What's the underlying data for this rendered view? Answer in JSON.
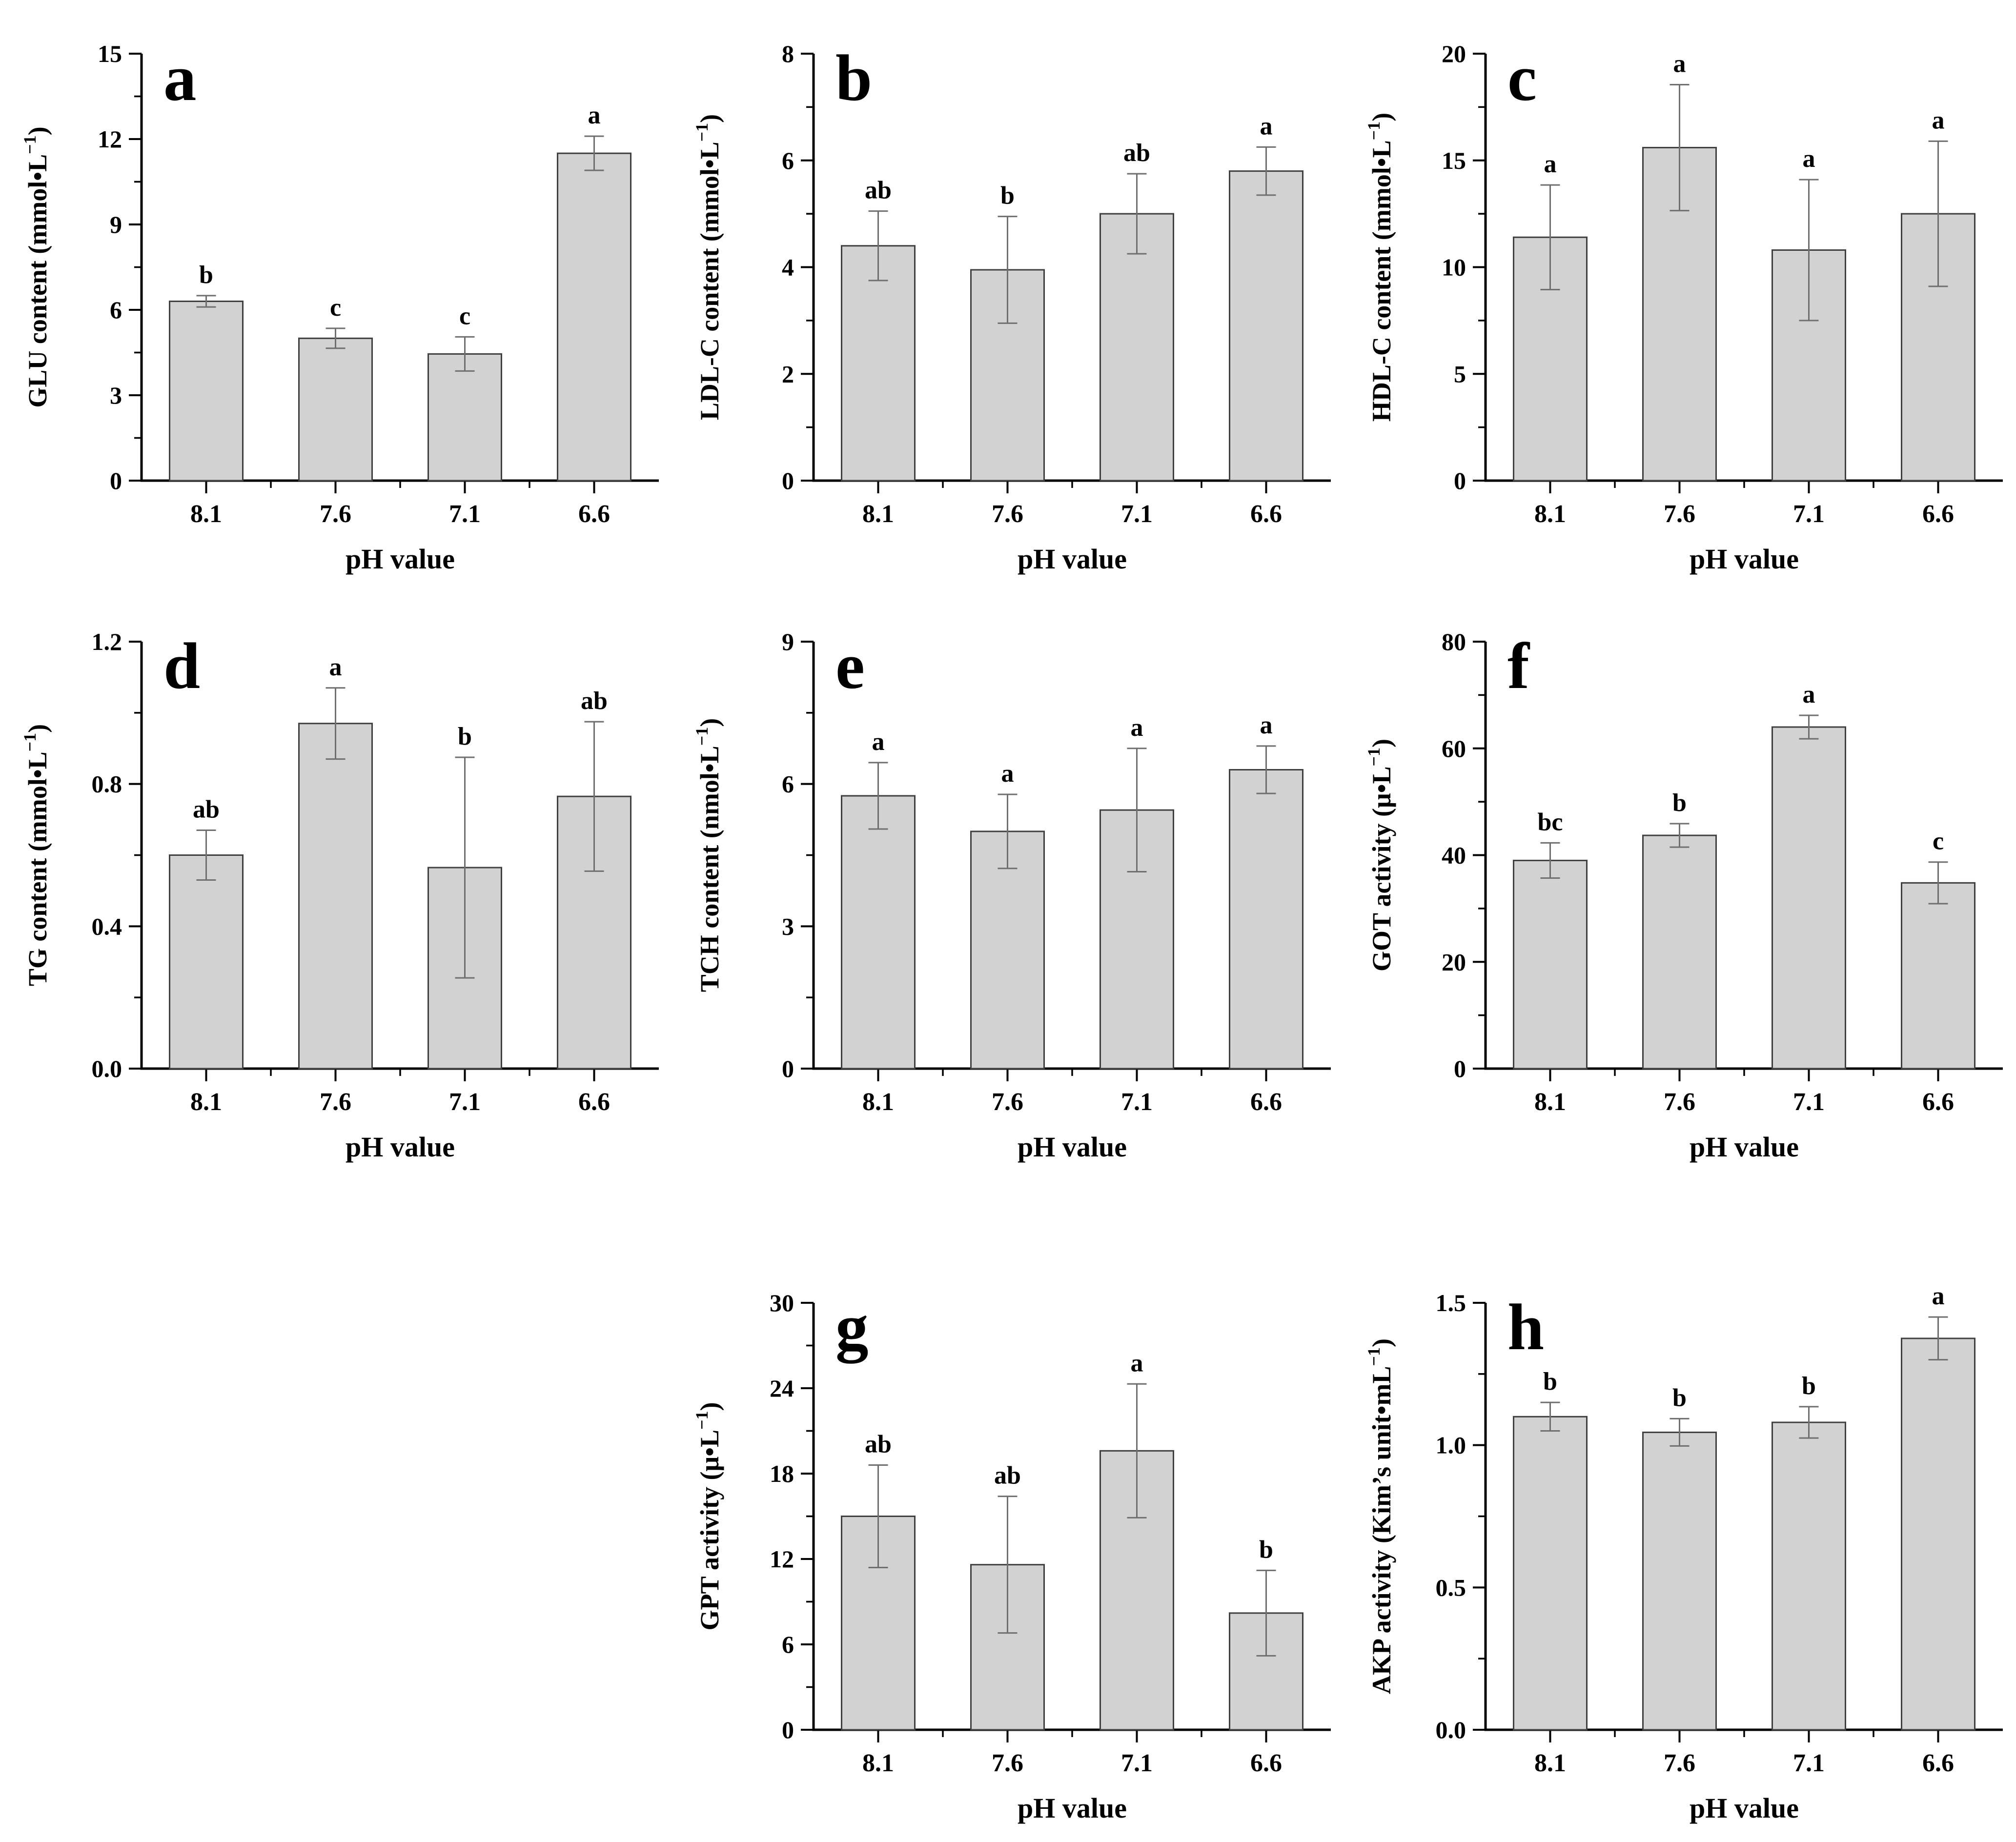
{
  "figure": {
    "background": "#ffffff",
    "description_panels": [
      "a",
      "b",
      "c",
      "d",
      "e",
      "f",
      "g",
      "h"
    ]
  },
  "shared": {
    "xlabel": "pH value",
    "categories": [
      "8.1",
      "7.6",
      "7.1",
      "6.6"
    ],
    "bar_fill": "#d2d2d2",
    "bar_stroke": "#404040",
    "error_color": "#6f6f6f",
    "axis_color": "#000000",
    "text_color": "#000000"
  },
  "chart_data": [
    {
      "type": "bar",
      "panel": "a",
      "row": 0,
      "col": 0,
      "ylabel_prefix": "GLU content (mmol•L",
      "ylabel_sup": "−1",
      "ylabel_suffix": ")",
      "ylim": [
        0,
        15
      ],
      "yticks": [
        0,
        3,
        6,
        9,
        12,
        15
      ],
      "ytick_labels": [
        "0",
        "3",
        "6",
        "9",
        "12",
        "15"
      ],
      "categories": [
        "8.1",
        "7.6",
        "7.1",
        "6.6"
      ],
      "xlabel": "pH value",
      "values": [
        6.3,
        5.0,
        4.45,
        11.5
      ],
      "errors": [
        0.2,
        0.35,
        0.6,
        0.6
      ],
      "sig_letters": [
        "b",
        "c",
        "c",
        "a"
      ]
    },
    {
      "type": "bar",
      "panel": "b",
      "row": 0,
      "col": 1,
      "ylabel_prefix": "LDL-C content (mmol•L",
      "ylabel_sup": "−1",
      "ylabel_suffix": ")",
      "ylim": [
        0,
        8
      ],
      "yticks": [
        0,
        2,
        4,
        6,
        8
      ],
      "ytick_labels": [
        "0",
        "2",
        "4",
        "6",
        "8"
      ],
      "categories": [
        "8.1",
        "7.6",
        "7.1",
        "6.6"
      ],
      "xlabel": "pH value",
      "values": [
        4.4,
        3.95,
        5.0,
        5.8
      ],
      "errors": [
        0.65,
        1.0,
        0.75,
        0.45
      ],
      "sig_letters": [
        "ab",
        "b",
        "ab",
        "a"
      ]
    },
    {
      "type": "bar",
      "panel": "c",
      "row": 0,
      "col": 2,
      "ylabel_prefix": "HDL-C content (mmol•L",
      "ylabel_sup": "−1",
      "ylabel_suffix": ")",
      "ylim": [
        0,
        20
      ],
      "yticks": [
        0,
        5,
        10,
        15,
        20
      ],
      "ytick_labels": [
        "0",
        "5",
        "10",
        "15",
        "20"
      ],
      "categories": [
        "8.1",
        "7.6",
        "7.1",
        "6.6"
      ],
      "xlabel": "pH value",
      "values": [
        11.4,
        15.6,
        10.8,
        12.5
      ],
      "errors": [
        2.45,
        2.95,
        3.3,
        3.4
      ],
      "sig_letters": [
        "a",
        "a",
        "a",
        "a"
      ]
    },
    {
      "type": "bar",
      "panel": "d",
      "row": 1,
      "col": 0,
      "ylabel_prefix": "TG content (mmol•L",
      "ylabel_sup": "−1",
      "ylabel_suffix": ")",
      "ylim": [
        0,
        1.2
      ],
      "yticks": [
        0,
        0.4,
        0.8,
        1.2
      ],
      "ytick_labels": [
        "0.0",
        "0.4",
        "0.8",
        "1.2"
      ],
      "categories": [
        "8.1",
        "7.6",
        "7.1",
        "6.6"
      ],
      "xlabel": "pH value",
      "values": [
        0.6,
        0.97,
        0.565,
        0.765
      ],
      "errors": [
        0.07,
        0.1,
        0.31,
        0.21
      ],
      "sig_letters": [
        "ab",
        "a",
        "b",
        "ab"
      ]
    },
    {
      "type": "bar",
      "panel": "e",
      "row": 1,
      "col": 1,
      "ylabel_prefix": "TCH content (nmol•L",
      "ylabel_sup": "−1",
      "ylabel_suffix": ")",
      "ylim": [
        0,
        9
      ],
      "yticks": [
        0,
        3,
        6,
        9
      ],
      "ytick_labels": [
        "0",
        "3",
        "6",
        "9"
      ],
      "categories": [
        "8.1",
        "7.6",
        "7.1",
        "6.6"
      ],
      "xlabel": "pH value",
      "values": [
        5.75,
        5.0,
        5.45,
        6.3
      ],
      "errors": [
        0.7,
        0.78,
        1.3,
        0.5
      ],
      "sig_letters": [
        "a",
        "a",
        "a",
        "a"
      ]
    },
    {
      "type": "bar",
      "panel": "f",
      "row": 1,
      "col": 2,
      "ylabel_prefix": "GOT activity (μ•L",
      "ylabel_sup": "−1",
      "ylabel_suffix": ")",
      "ylim": [
        0,
        80
      ],
      "yticks": [
        0,
        20,
        40,
        60,
        80
      ],
      "ytick_labels": [
        "0",
        "20",
        "40",
        "60",
        "80"
      ],
      "categories": [
        "8.1",
        "7.6",
        "7.1",
        "6.6"
      ],
      "xlabel": "pH value",
      "values": [
        39,
        43.7,
        64,
        34.8
      ],
      "errors": [
        3.3,
        2.2,
        2.2,
        3.9
      ],
      "sig_letters": [
        "bc",
        "b",
        "a",
        "c"
      ]
    },
    {
      "type": "bar",
      "panel": "g",
      "row": 2,
      "col": 1,
      "ylabel_prefix": "GPT activity (μ•L",
      "ylabel_sup": "−1",
      "ylabel_suffix": ")",
      "ylim": [
        0,
        30
      ],
      "yticks": [
        0,
        6,
        12,
        18,
        24,
        30
      ],
      "ytick_labels": [
        "0",
        "6",
        "12",
        "18",
        "24",
        "30"
      ],
      "categories": [
        "8.1",
        "7.6",
        "7.1",
        "6.6"
      ],
      "xlabel": "pH value",
      "values": [
        15.0,
        11.6,
        19.6,
        8.2
      ],
      "errors": [
        3.6,
        4.8,
        4.7,
        3.0
      ],
      "sig_letters": [
        "ab",
        "ab",
        "a",
        "b"
      ]
    },
    {
      "type": "bar",
      "panel": "h",
      "row": 2,
      "col": 2,
      "ylabel_prefix": "AKP activity (Kim’s unit•mL",
      "ylabel_sup": "−1",
      "ylabel_suffix": ")",
      "ylim": [
        0,
        1.5
      ],
      "yticks": [
        0,
        0.5,
        1.0,
        1.5
      ],
      "ytick_labels": [
        "0.0",
        "0.5",
        "1.0",
        "1.5"
      ],
      "categories": [
        "8.1",
        "7.6",
        "7.1",
        "6.6"
      ],
      "xlabel": "pH value",
      "values": [
        1.1,
        1.045,
        1.08,
        1.375
      ],
      "errors": [
        0.05,
        0.048,
        0.055,
        0.075
      ],
      "sig_letters": [
        "b",
        "b",
        "b",
        "a"
      ]
    }
  ]
}
